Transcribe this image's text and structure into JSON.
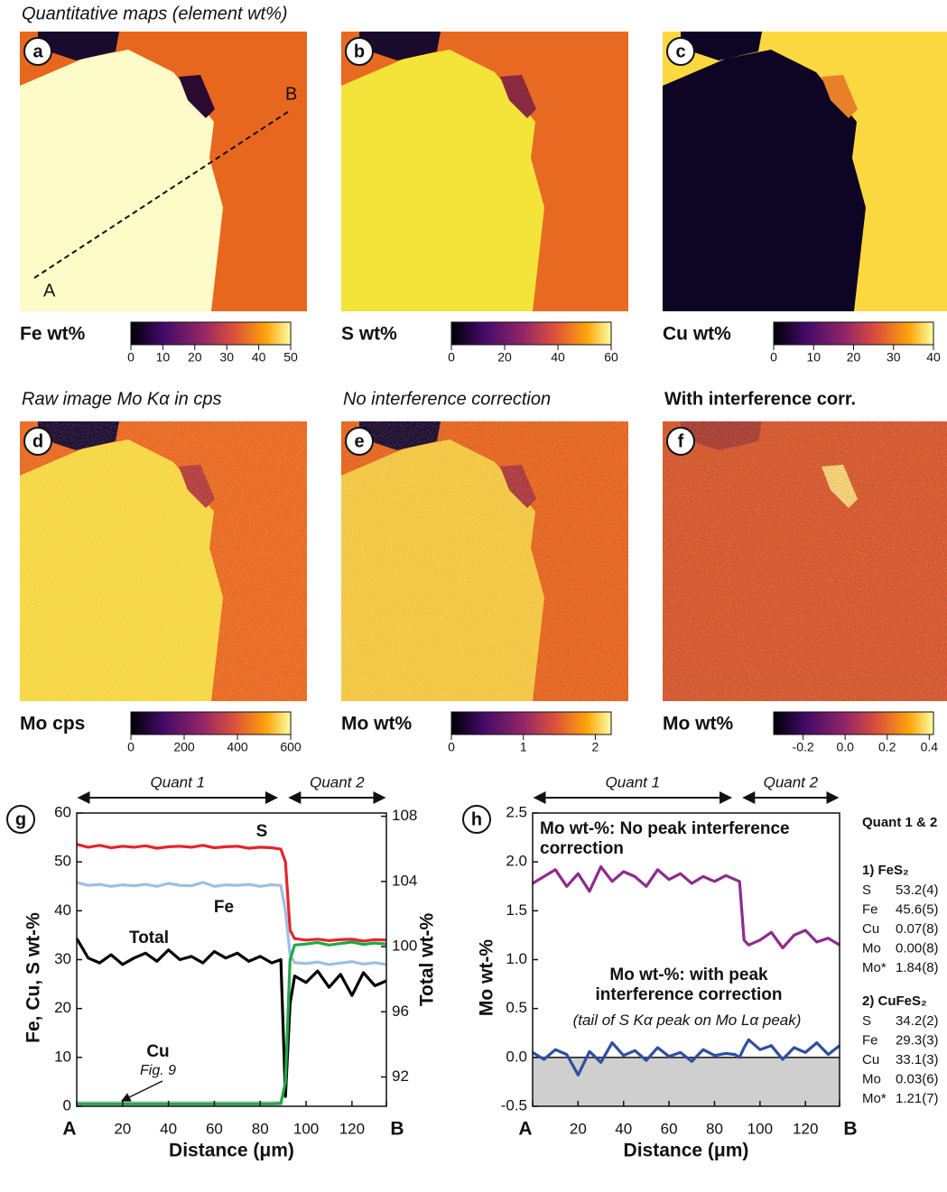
{
  "maps": {
    "title": "Quantitative maps (element wt%)",
    "panels": [
      {
        "letter": "a",
        "label": "Fe wt%",
        "markers": [
          "A",
          "B"
        ],
        "colorbar": {
          "lim": [
            0,
            50
          ],
          "ticks": [
            0,
            10,
            20,
            30,
            40,
            50
          ]
        }
      },
      {
        "letter": "b",
        "label": "S wt%",
        "colorbar": {
          "lim": [
            0,
            60
          ],
          "ticks": [
            0,
            20,
            40,
            60
          ]
        }
      },
      {
        "letter": "c",
        "label": "Cu wt%",
        "colorbar": {
          "lim": [
            0,
            40
          ],
          "ticks": [
            0,
            10,
            20,
            30,
            40
          ]
        }
      },
      {
        "letter": "d",
        "title": "Raw image Mo Kα in cps",
        "label": "Mo cps",
        "colorbar": {
          "lim": [
            0,
            600
          ],
          "ticks": [
            0,
            200,
            400,
            600
          ]
        }
      },
      {
        "letter": "e",
        "title": "No interference correction",
        "label": "Mo wt%",
        "colorbar": {
          "lim": [
            0,
            2.22
          ],
          "ticks": [
            0,
            1,
            2
          ]
        }
      },
      {
        "letter": "f",
        "title": "With interference corr.",
        "label": "Mo wt%",
        "colorbar": {
          "lim": [
            -0.34,
            0.42
          ],
          "ticks": [
            -0.2,
            {
              "value": 0,
              "label": "0.0"
            },
            0.2,
            0.4
          ]
        }
      }
    ]
  },
  "chart_data": [
    {
      "type": "line",
      "letter": "g",
      "xlabel": "Distance (μm)",
      "ylabel": "Fe, Cu, S wt-%",
      "y2label": "Total wt-%",
      "annotations": [
        "Quant 1",
        "Quant 2",
        "Fig. 9"
      ],
      "x": [
        0,
        5,
        10,
        15,
        20,
        25,
        30,
        35,
        40,
        45,
        50,
        55,
        60,
        65,
        70,
        75,
        80,
        85,
        89,
        91,
        93,
        95,
        100,
        105,
        110,
        115,
        120,
        125,
        130,
        135
      ],
      "xlim": [
        0,
        135
      ],
      "xticks": [
        {
          "value": 0,
          "label": "A"
        },
        20,
        40,
        60,
        80,
        100,
        120,
        {
          "value": 135,
          "label": "B"
        }
      ],
      "ylim": [
        0,
        60
      ],
      "yticks": [
        0,
        10,
        20,
        30,
        40,
        50,
        60
      ],
      "y2lim": [
        90.2,
        108.2
      ],
      "y2ticks": [
        92,
        96,
        100,
        104,
        108
      ],
      "series": [
        {
          "name": "S",
          "color": "#e3262b",
          "values": [
            53.6,
            53.0,
            53.4,
            52.9,
            53.2,
            53.0,
            53.3,
            52.8,
            53.1,
            53.2,
            53.0,
            53.4,
            52.9,
            53.1,
            53.2,
            52.8,
            53.0,
            52.9,
            52.6,
            50,
            36,
            34.3,
            34.0,
            34.2,
            33.9,
            34.1,
            34.2,
            33.8,
            34.1,
            34.0
          ]
        },
        {
          "name": "Fe",
          "color": "#9dbfe2",
          "values": [
            45.8,
            45.2,
            45.4,
            45.0,
            45.3,
            45.1,
            45.4,
            45.0,
            45.6,
            45.2,
            45.1,
            45.8,
            45.0,
            45.3,
            45.2,
            45.4,
            45.0,
            45.3,
            45.2,
            40,
            31,
            29.4,
            29.2,
            29.5,
            29.0,
            29.3,
            29.6,
            29.1,
            29.4,
            29.0
          ]
        },
        {
          "name": "Total",
          "color": "#000000",
          "axis": "y2",
          "values": [
            100.5,
            99.3,
            99.0,
            99.5,
            98.9,
            99.3,
            99.6,
            99.1,
            99.8,
            99.2,
            99.4,
            99.0,
            99.7,
            99.3,
            99.6,
            99.1,
            99.4,
            99.0,
            99.2,
            90.8,
            96.5,
            98.2,
            97.8,
            98.5,
            97.5,
            98.3,
            97.0,
            98.4,
            97.6,
            97.9
          ]
        },
        {
          "name": "Cu",
          "color": "#1fa84a",
          "values": [
            0.5,
            0.5,
            0.5,
            0.5,
            0.5,
            0.5,
            0.5,
            0.5,
            0.5,
            0.5,
            0.5,
            0.5,
            0.5,
            0.5,
            0.5,
            0.5,
            0.5,
            0.5,
            0.6,
            5,
            30,
            33.0,
            33.2,
            33.5,
            33.0,
            33.3,
            33.6,
            33.1,
            33.4,
            33.2
          ]
        }
      ]
    },
    {
      "type": "line",
      "letter": "h",
      "xlabel": "Distance (μm)",
      "ylabel": "Mo wt-%",
      "annotations": [
        "Quant 1",
        "Quant 2",
        "(tail of S Kα peak on Mo Lα peak)"
      ],
      "x": [
        0,
        5,
        10,
        15,
        20,
        25,
        30,
        35,
        40,
        45,
        50,
        55,
        60,
        65,
        70,
        75,
        80,
        85,
        89,
        91,
        93,
        95,
        100,
        105,
        110,
        115,
        120,
        125,
        130,
        135
      ],
      "xlim": [
        0,
        135
      ],
      "xticks": [
        {
          "value": 0,
          "label": "A"
        },
        20,
        40,
        60,
        80,
        100,
        120,
        {
          "value": 135,
          "label": "B"
        }
      ],
      "ylim": [
        -0.5,
        2.5
      ],
      "yticks": [
        -0.5,
        {
          "value": 0,
          "label": "0.0"
        },
        0.5,
        {
          "value": 1,
          "label": "1.0"
        },
        1.5,
        {
          "value": 2,
          "label": "2.0"
        },
        2.5
      ],
      "series": [
        {
          "name": "Mo wt-%: No peak interference correction",
          "color": "#8e2b8e",
          "values": [
            1.78,
            1.85,
            1.92,
            1.75,
            1.88,
            1.7,
            1.95,
            1.8,
            1.9,
            1.85,
            1.75,
            1.92,
            1.82,
            1.88,
            1.78,
            1.85,
            1.8,
            1.86,
            1.82,
            1.8,
            1.2,
            1.15,
            1.2,
            1.28,
            1.12,
            1.25,
            1.3,
            1.18,
            1.22,
            1.15
          ]
        },
        {
          "name": "Mo wt-%: with peak interference correction",
          "color": "#2f4fa0",
          "values": [
            0.05,
            -0.02,
            0.08,
            0.03,
            -0.18,
            0.06,
            -0.05,
            0.15,
            0.02,
            0.07,
            -0.03,
            0.1,
            0.01,
            0.05,
            -0.04,
            0.08,
            0.02,
            0.04,
            0.03,
            0.0,
            0.1,
            0.18,
            0.08,
            0.12,
            -0.02,
            0.1,
            0.05,
            0.15,
            0.03,
            0.12
          ]
        }
      ]
    }
  ],
  "table": {
    "title": "Quant 1 & 2",
    "groups": [
      {
        "heading": "1) FeS₂",
        "rows": [
          [
            "S",
            "53.2(4)"
          ],
          [
            "Fe",
            "45.6(5)"
          ],
          [
            "Cu",
            "0.07(8)"
          ],
          [
            "Mo",
            "0.00(8)"
          ],
          [
            "Mo*",
            "1.84(8)"
          ]
        ]
      },
      {
        "heading": "2) CuFeS₂",
        "rows": [
          [
            "S",
            "34.2(2)"
          ],
          [
            "Fe",
            "29.3(3)"
          ],
          [
            "Cu",
            "33.1(3)"
          ],
          [
            "Mo",
            "0.03(6)"
          ],
          [
            "Mo*",
            "1.21(7)"
          ]
        ]
      }
    ]
  }
}
